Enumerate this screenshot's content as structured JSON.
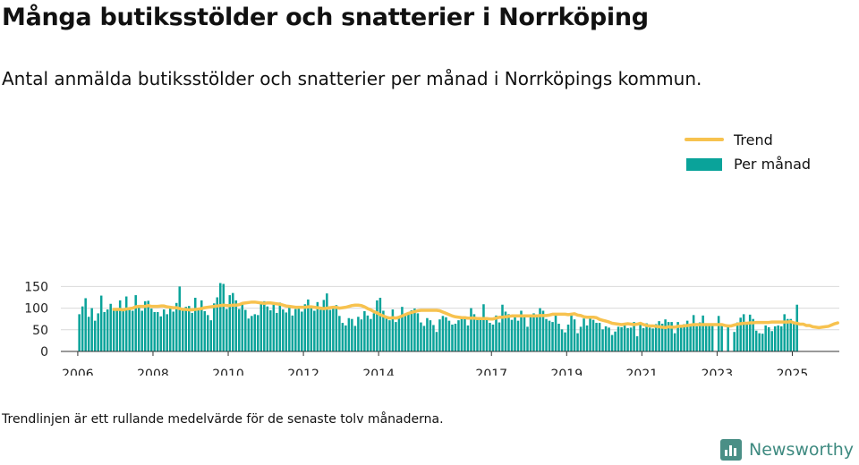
{
  "title": "Många butiksstölder och snatterier i Norrköping",
  "subtitle": "Antal anmälda butiksstölder och snatterier per månad i Norrköpings kommun.",
  "footnote": "Trendlinjen är ett rullande medelvärde för de senaste tolv månaderna.",
  "brand": "Newsworthy",
  "colors": {
    "bar": "#0aa39a",
    "trend": "#f7c24f",
    "grid": "#d9d9d9",
    "axis": "#333333",
    "brand": "#3e8a80"
  },
  "chart_data": {
    "type": "bar",
    "title": "Många butiksstölder och snatterier i Norrköping",
    "subtitle": "Antal anmälda butiksstölder och snatterier per månad i Norrköpings kommun.",
    "ylim": [
      0,
      170
    ],
    "yticks": [
      0,
      50,
      100,
      150
    ],
    "xlim": [
      2005.55,
      2026.25
    ],
    "xticks": [
      2006,
      2008,
      2010,
      2012,
      2014,
      2017,
      2019,
      2021,
      2023,
      2025
    ],
    "grid": "horizontal",
    "legend_position": "top-right",
    "start": "2006-01",
    "series": [
      {
        "name": "Per månad",
        "type": "bar",
        "values": [
          86,
          104,
          123,
          80,
          100,
          71,
          88,
          129,
          91,
          97,
          110,
          96,
          94,
          118,
          97,
          127,
          101,
          94,
          130,
          106,
          94,
          116,
          117,
          99,
          91,
          91,
          81,
          97,
          86,
          102,
          92,
          112,
          150,
          98,
          103,
          105,
          89,
          124,
          98,
          118,
          93,
          84,
          72,
          111,
          125,
          158,
          156,
          98,
          130,
          135,
          118,
          98,
          108,
          96,
          76,
          82,
          86,
          84,
          111,
          116,
          104,
          95,
          108,
          89,
          113,
          97,
          90,
          106,
          83,
          98,
          103,
          92,
          109,
          120,
          103,
          94,
          114,
          96,
          119,
          134,
          96,
          102,
          107,
          82,
          66,
          60,
          77,
          75,
          59,
          80,
          74,
          93,
          83,
          75,
          88,
          118,
          124,
          94,
          80,
          72,
          97,
          68,
          77,
          103,
          86,
          90,
          95,
          99,
          88,
          67,
          59,
          77,
          72,
          61,
          45,
          74,
          82,
          79,
          71,
          62,
          64,
          72,
          80,
          81,
          60,
          100,
          86,
          77,
          76,
          109,
          78,
          66,
          62,
          83,
          67,
          108,
          92,
          86,
          73,
          84,
          71,
          94,
          85,
          57,
          80,
          88,
          84,
          100,
          94,
          75,
          71,
          68,
          84,
          64,
          51,
          44,
          62,
          88,
          74,
          42,
          57,
          76,
          60,
          80,
          73,
          66,
          66,
          51,
          58,
          55,
          38,
          46,
          57,
          56,
          66,
          54,
          55,
          68,
          35,
          61,
          54,
          65,
          55,
          53,
          63,
          70,
          64,
          74,
          68,
          68,
          42,
          68,
          56,
          63,
          71,
          64,
          84,
          58,
          67,
          83,
          60,
          62,
          62,
          0,
          82,
          60,
          0,
          62,
          0,
          45,
          67,
          78,
          86,
          63,
          85,
          75,
          48,
          42,
          41,
          60,
          56,
          47,
          58,
          60,
          58,
          86,
          75,
          75,
          65,
          108
        ]
      },
      {
        "name": "Trend",
        "type": "line",
        "values": [
          null,
          null,
          null,
          null,
          null,
          null,
          null,
          null,
          null,
          null,
          null,
          97,
          97,
          97,
          96,
          98,
          99,
          100,
          103,
          104,
          104,
          104,
          106,
          104,
          104,
          104,
          105,
          105,
          103,
          102,
          101,
          101,
          99,
          97,
          97,
          96,
          96,
          97,
          98,
          99,
          101,
          102,
          103,
          104,
          105,
          106,
          107,
          106,
          106,
          107,
          107,
          108,
          111,
          112,
          113,
          114,
          114,
          113,
          112,
          111,
          112,
          112,
          111,
          110,
          109,
          107,
          105,
          104,
          103,
          102,
          102,
          102,
          102,
          103,
          103,
          102,
          101,
          100,
          99,
          100,
          101,
          102,
          102,
          100,
          101,
          102,
          104,
          106,
          107,
          107,
          106,
          103,
          99,
          96,
          92,
          89,
          85,
          82,
          79,
          77,
          78,
          77,
          79,
          82,
          85,
          88,
          90,
          92,
          94,
          95,
          95,
          95,
          95,
          95,
          95,
          94,
          91,
          88,
          85,
          82,
          80,
          79,
          78,
          78,
          77,
          77,
          77,
          76,
          76,
          76,
          76,
          75,
          75,
          77,
          79,
          79,
          80,
          81,
          82,
          82,
          82,
          82,
          82,
          82,
          82,
          82,
          82,
          83,
          83,
          83,
          84,
          86,
          86,
          86,
          86,
          86,
          85,
          86,
          87,
          84,
          83,
          80,
          79,
          79,
          79,
          78,
          74,
          72,
          70,
          68,
          65,
          64,
          63,
          62,
          63,
          64,
          63,
          62,
          63,
          65,
          62,
          60,
          59,
          59,
          58,
          57,
          56,
          55,
          57,
          56,
          56,
          58,
          58,
          59,
          60,
          61,
          62,
          62,
          62,
          62,
          62,
          62,
          62,
          62,
          62,
          62,
          60,
          59,
          59,
          61,
          63,
          64,
          65,
          65,
          66,
          66,
          67,
          67,
          67,
          67,
          67,
          68,
          68,
          68,
          68,
          68,
          68,
          69,
          66,
          65,
          63,
          63,
          60,
          60,
          57,
          56,
          55,
          56,
          57,
          58,
          61,
          64,
          66
        ]
      }
    ]
  }
}
